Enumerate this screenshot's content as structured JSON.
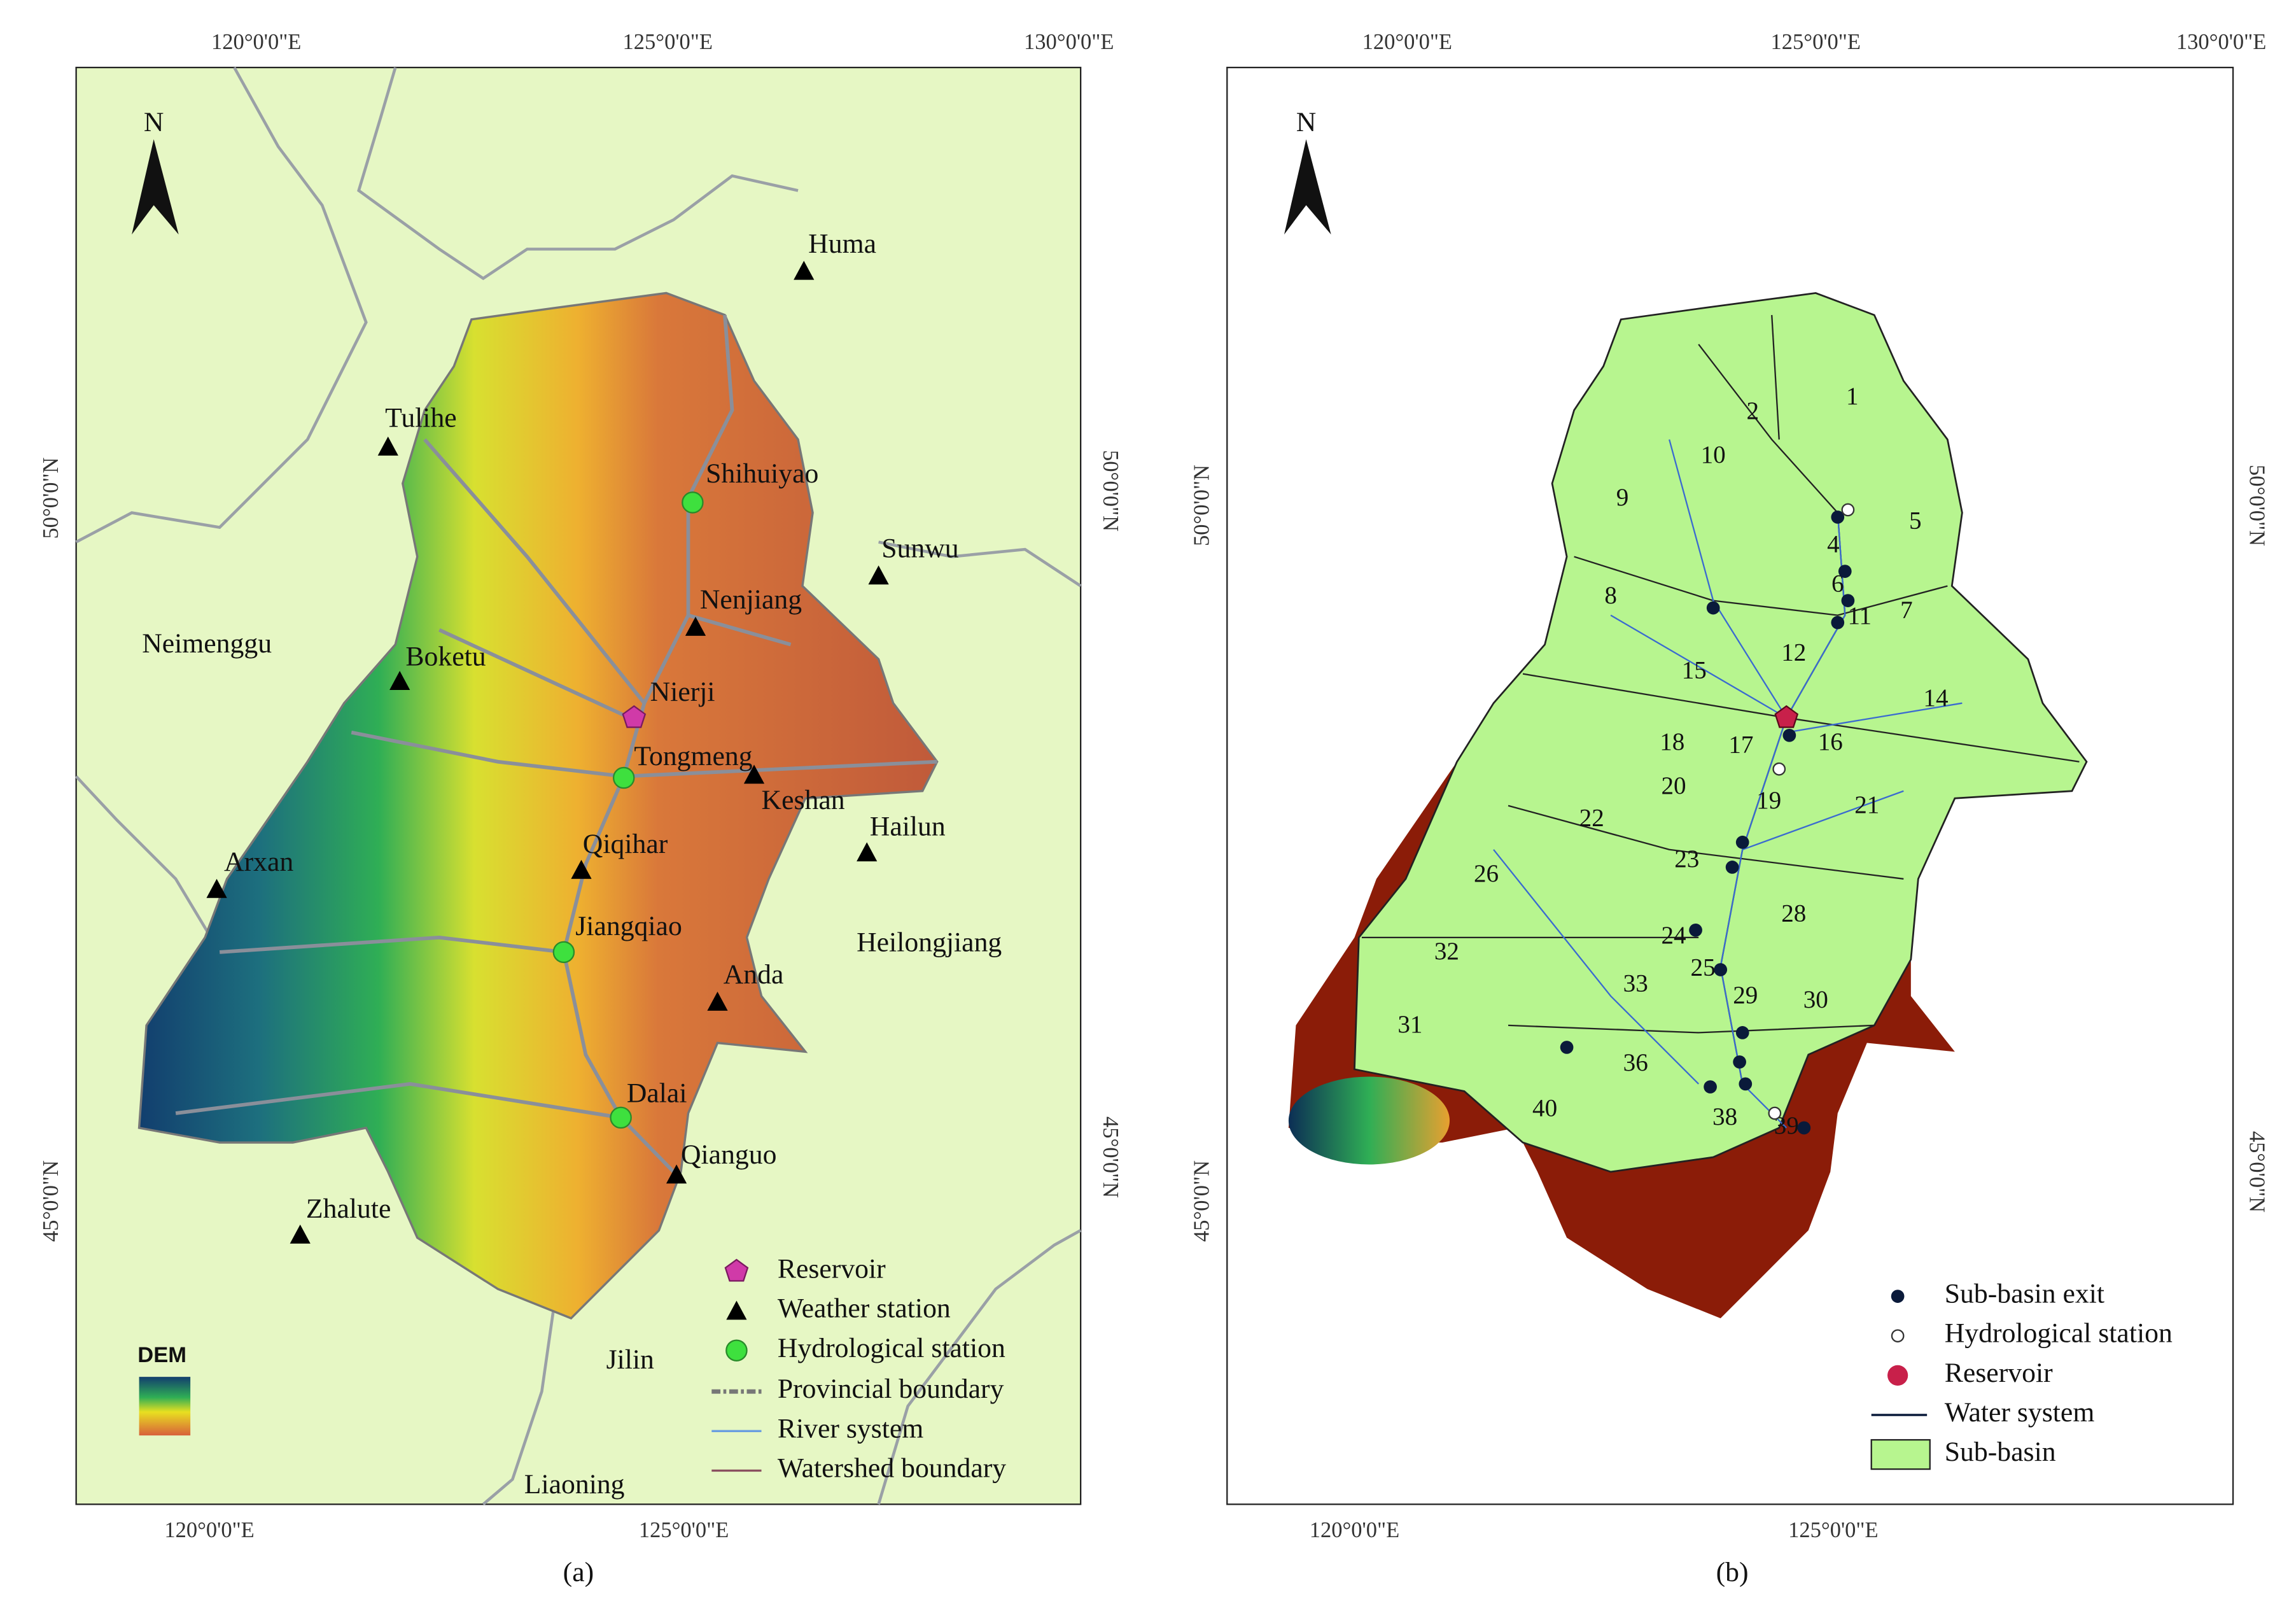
{
  "panel_a": {
    "caption": "(a)",
    "top_axis": [
      "120°0'0\"E",
      "125°0'0\"E",
      "130°0'0\"E"
    ],
    "bottom_axis": [
      "120°0'0\"E",
      "125°0'0\"E"
    ],
    "left_axis": [
      "50°0'0\"N",
      "45°0'0\"N"
    ],
    "right_axis": [
      "50°0'0\"N",
      "45°0'0\"N"
    ],
    "north": "N",
    "dem_label": "DEM",
    "places": [
      "Huma",
      "Tulihe",
      "Shihuiyao",
      "Sunwu",
      "Nenjiang",
      "Boketu",
      "Nierji",
      "Tongmeng",
      "Keshan",
      "Hailun",
      "Arxan",
      "Qiqihar",
      "Jiangqiao",
      "Anda",
      "Dalai",
      "Qianguo",
      "Zhalute"
    ],
    "regions": [
      "Neimenggu",
      "Heilongjiang",
      "Jilin",
      "Liaoning"
    ],
    "legend": [
      "Reservoir",
      "Weather station",
      "Hydrological station",
      "Provincial boundary",
      "River system",
      "Watershed boundary"
    ]
  },
  "panel_b": {
    "caption": "(b)",
    "top_axis": [
      "120°0'0\"E",
      "125°0'0\"E",
      "130°0'0\"E"
    ],
    "bottom_axis": [
      "120°0'0\"E",
      "125°0'0\"E"
    ],
    "left_axis": [
      "50°0'0\"N",
      "45°0'0\"N"
    ],
    "right_axis": [
      "50°0'0\"N",
      "45°0'0\"N"
    ],
    "north": "N",
    "subbasins": [
      "1",
      "2",
      "10",
      "9",
      "5",
      "4",
      "6",
      "8",
      "7",
      "11",
      "12",
      "15",
      "14",
      "18",
      "17",
      "16",
      "20",
      "19",
      "21",
      "22",
      "23",
      "26",
      "28",
      "24",
      "32",
      "25",
      "33",
      "29",
      "30",
      "31",
      "36",
      "40",
      "38",
      "39"
    ],
    "legend": [
      "Sub-basin exit",
      "Hydrological station",
      "Reservoir",
      "Water system",
      "Sub-basin"
    ]
  }
}
